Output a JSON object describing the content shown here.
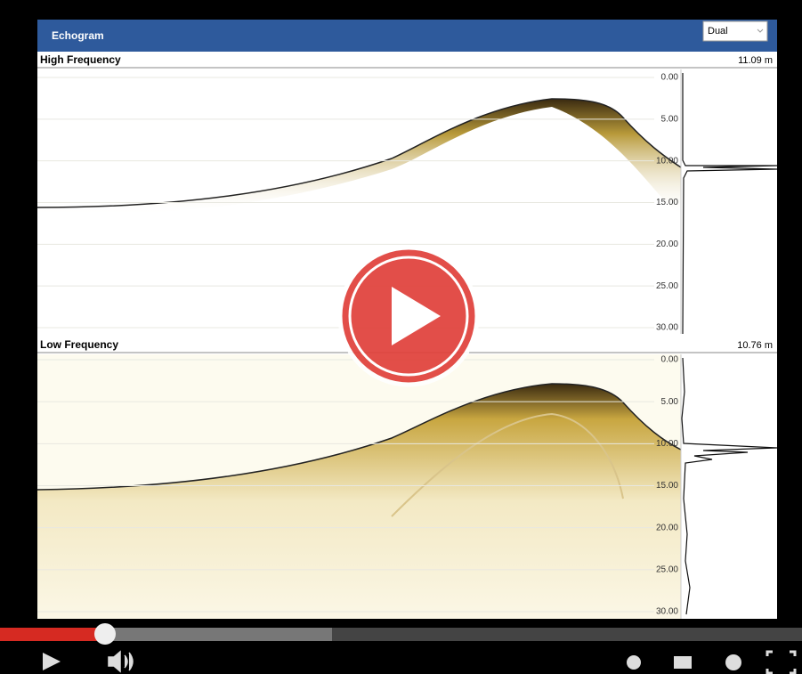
{
  "app": {
    "title": "Echogram",
    "mode_select": "Dual",
    "panels": [
      {
        "label": "High Frequency",
        "depth_reading": "11.09 m",
        "depth_ticks": [
          "0.00",
          "5.00",
          "10.00",
          "15.00",
          "20.00",
          "25.00",
          "30.00"
        ]
      },
      {
        "label": "Low Frequency",
        "depth_reading": "10.76 m",
        "depth_ticks": [
          "0.00",
          "5.00",
          "10.00",
          "15.00",
          "20.00",
          "25.00",
          "30.00"
        ]
      }
    ]
  }
}
